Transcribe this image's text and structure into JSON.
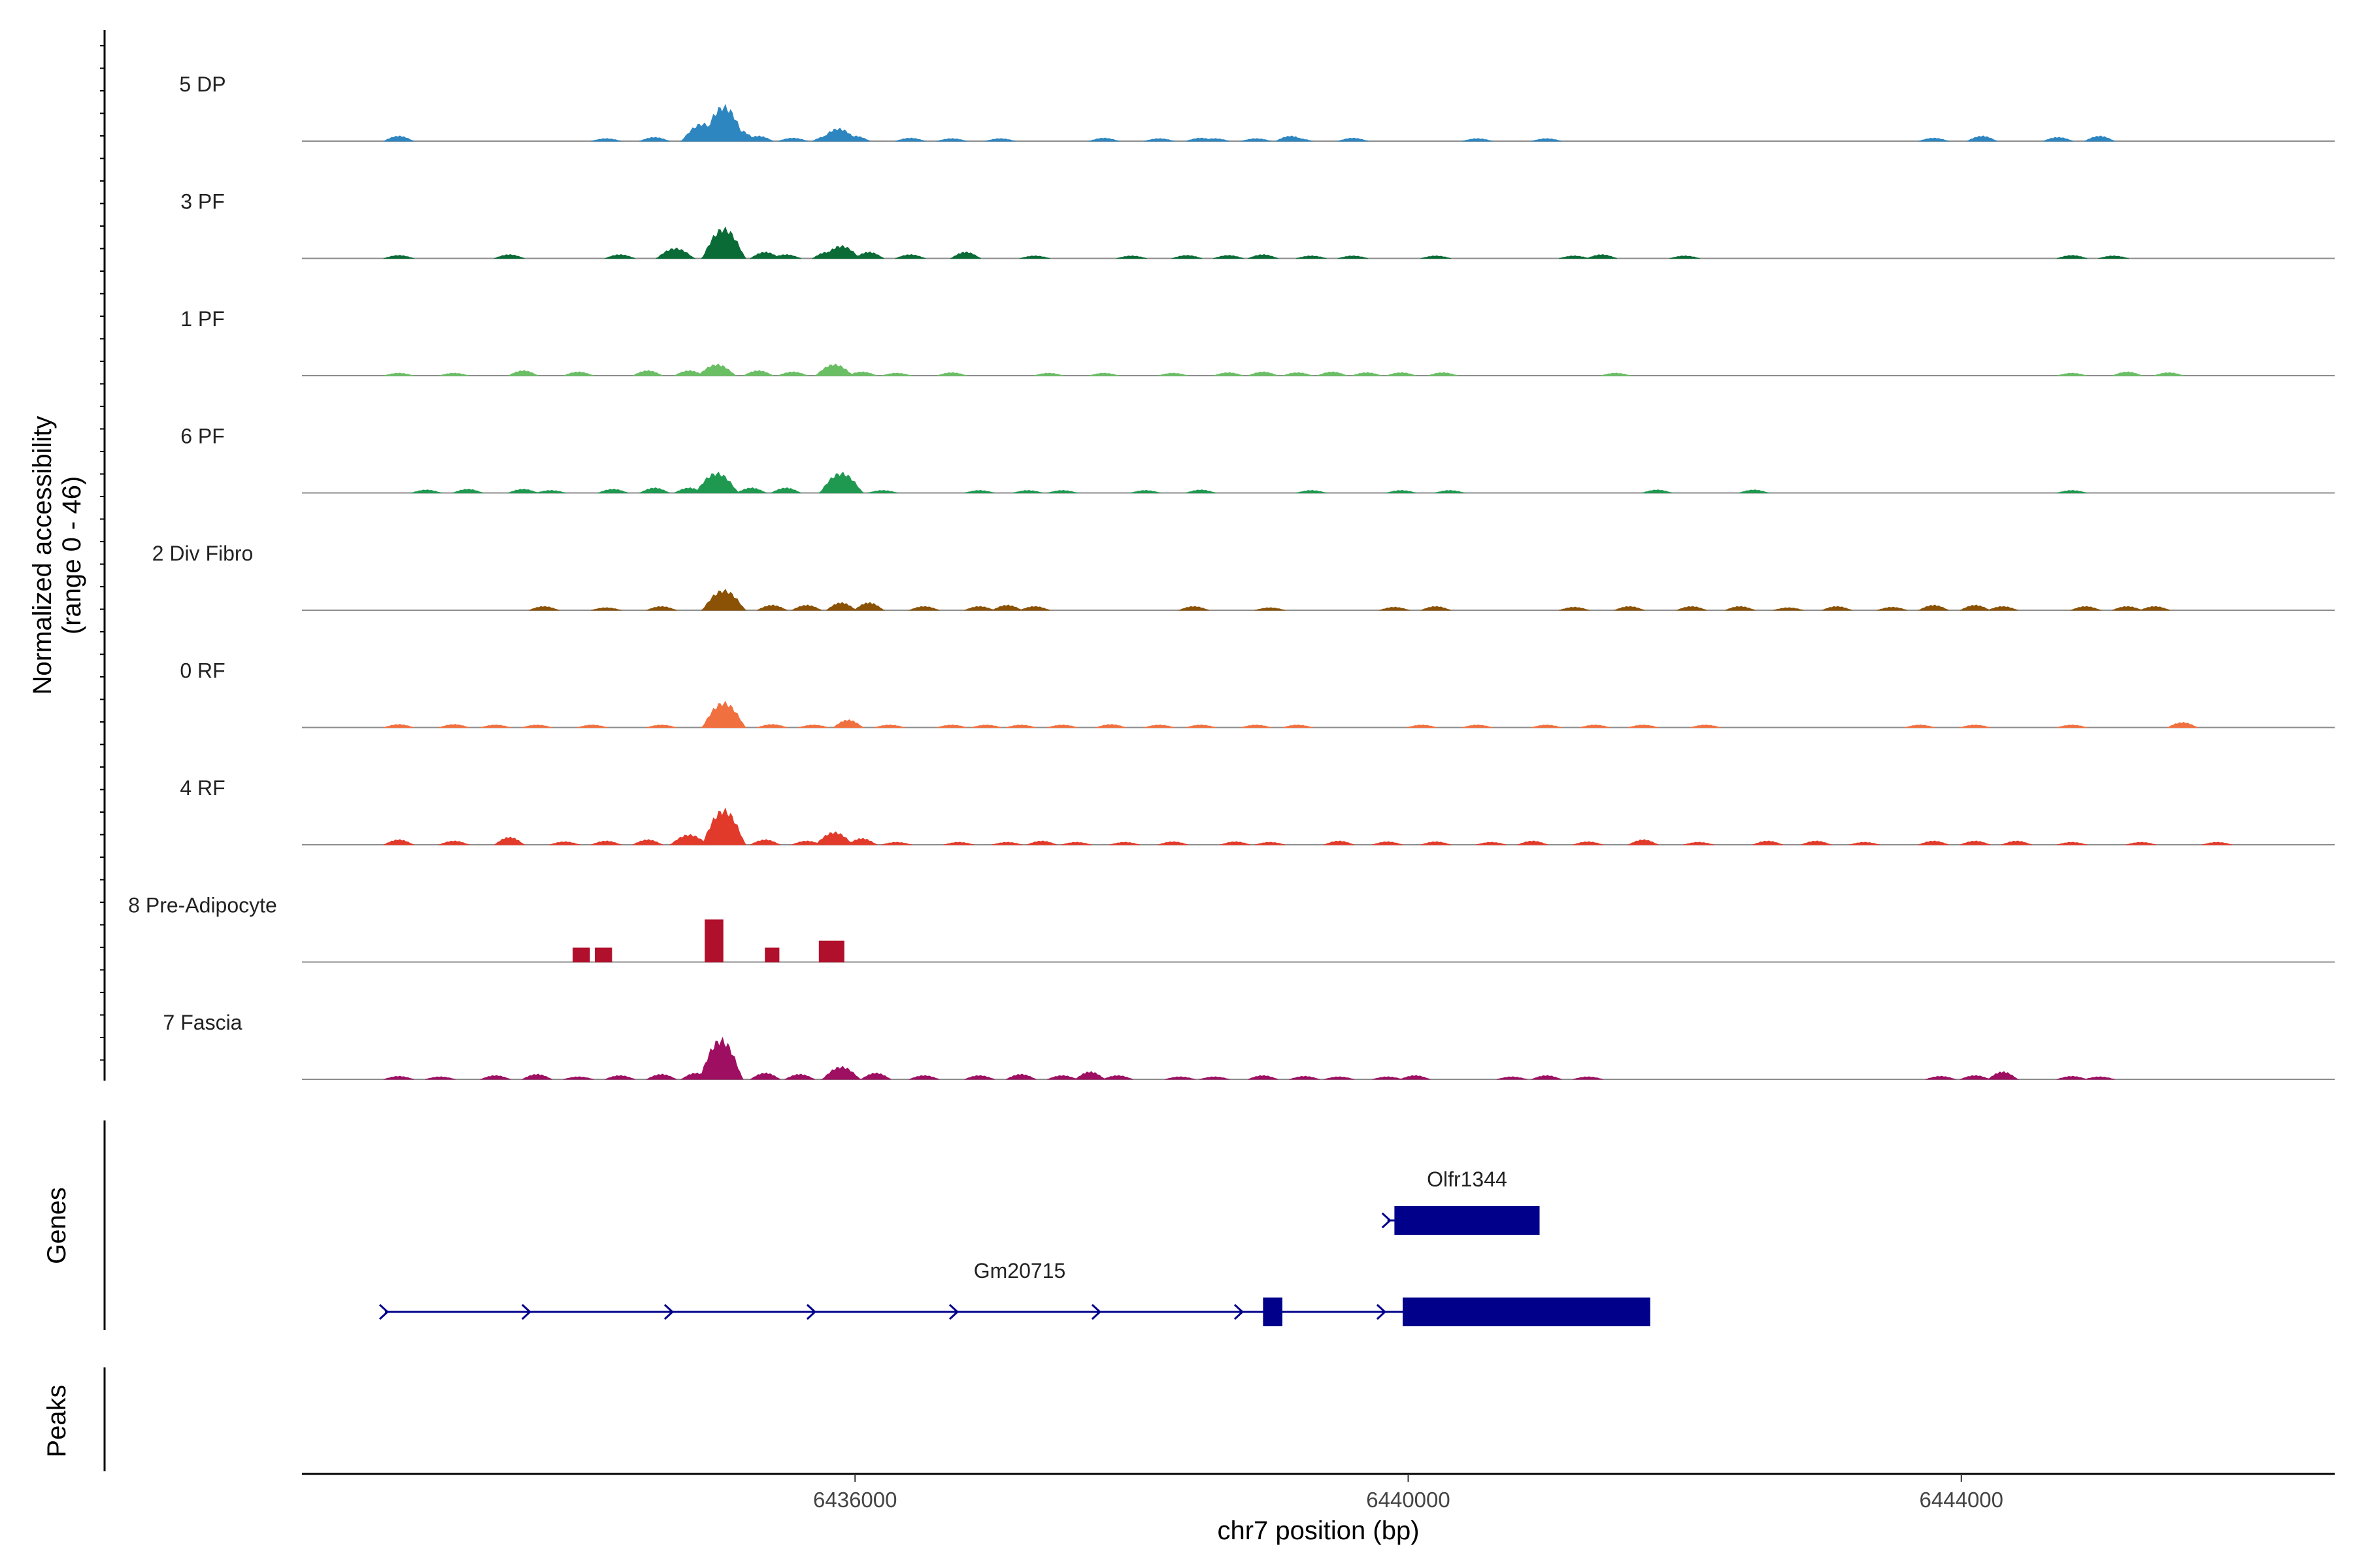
{
  "chart_data": {
    "type": "area",
    "title": "",
    "ylabel_line1": "Normalized accessibility",
    "ylabel_line2": "(range 0 - 46)",
    "xlabel": "chr7 position (bp)",
    "chromosome": "chr7",
    "xlim": [
      6432000,
      6446700
    ],
    "ylim": [
      0,
      46
    ],
    "x_ticks": [
      {
        "value": 6436000,
        "label": "6436000"
      },
      {
        "value": 6440000,
        "label": "6440000"
      },
      {
        "value": 6444000,
        "label": "6444000"
      }
    ],
    "tracks": [
      {
        "name": "5 DP",
        "color": "#2E86C1",
        "peaks": [
          [
            6432700,
            2
          ],
          [
            6434200,
            1
          ],
          [
            6434550,
            1.5
          ],
          [
            6434900,
            7
          ],
          [
            6435050,
            14
          ],
          [
            6435150,
            4.5
          ],
          [
            6435300,
            2
          ],
          [
            6435550,
            1.2
          ],
          [
            6435800,
            2
          ],
          [
            6435880,
            5
          ],
          [
            6436000,
            2
          ],
          [
            6436400,
            1.2
          ],
          [
            6436700,
            1
          ],
          [
            6437050,
            1
          ],
          [
            6437800,
            1.2
          ],
          [
            6438200,
            1
          ],
          [
            6438500,
            1.2
          ],
          [
            6438600,
            1
          ],
          [
            6438900,
            1
          ],
          [
            6439150,
            2
          ],
          [
            6439200,
            1
          ],
          [
            6439600,
            1.2
          ],
          [
            6440500,
            1
          ],
          [
            6441000,
            1
          ],
          [
            6443800,
            1.2
          ],
          [
            6444150,
            2
          ],
          [
            6444700,
            1.5
          ],
          [
            6445000,
            2
          ]
        ]
      },
      {
        "name": "3 PF",
        "color": "#0B6B37",
        "peaks": [
          [
            6432700,
            1.2
          ],
          [
            6433500,
            1.5
          ],
          [
            6434300,
            1.5
          ],
          [
            6434700,
            4
          ],
          [
            6435050,
            12
          ],
          [
            6435350,
            2.5
          ],
          [
            6435500,
            1.5
          ],
          [
            6435800,
            2.5
          ],
          [
            6435900,
            5
          ],
          [
            6436100,
            2.5
          ],
          [
            6436400,
            1.5
          ],
          [
            6436800,
            2.5
          ],
          [
            6437300,
            1
          ],
          [
            6438000,
            1
          ],
          [
            6438400,
            1.2
          ],
          [
            6438700,
            1.2
          ],
          [
            6438950,
            1.5
          ],
          [
            6439300,
            1
          ],
          [
            6439600,
            1
          ],
          [
            6440200,
            1
          ],
          [
            6441200,
            1
          ],
          [
            6441400,
            1.5
          ],
          [
            6442000,
            1
          ],
          [
            6444800,
            1.2
          ],
          [
            6445100,
            1
          ]
        ]
      },
      {
        "name": "1 PF",
        "color": "#6ABE64",
        "peaks": [
          [
            6432700,
            1
          ],
          [
            6433100,
            1
          ],
          [
            6433600,
            2
          ],
          [
            6434000,
            1.5
          ],
          [
            6434500,
            2
          ],
          [
            6434800,
            2
          ],
          [
            6435000,
            4.5
          ],
          [
            6435300,
            2
          ],
          [
            6435550,
            1.5
          ],
          [
            6435850,
            4.5
          ],
          [
            6436050,
            1.5
          ],
          [
            6436300,
            1
          ],
          [
            6436700,
            1.2
          ],
          [
            6437400,
            1
          ],
          [
            6437800,
            1
          ],
          [
            6438300,
            1
          ],
          [
            6438700,
            1.2
          ],
          [
            6438950,
            1.5
          ],
          [
            6439200,
            1.2
          ],
          [
            6439450,
            1.5
          ],
          [
            6439700,
            1.2
          ],
          [
            6439950,
            1.2
          ],
          [
            6440250,
            1.2
          ],
          [
            6441500,
            1
          ],
          [
            6444800,
            1
          ],
          [
            6445200,
            1.5
          ],
          [
            6445500,
            1.2
          ]
        ]
      },
      {
        "name": "6 PF",
        "color": "#1F9950",
        "peaks": [
          [
            6432900,
            1.2
          ],
          [
            6433200,
            1.5
          ],
          [
            6433600,
            1.5
          ],
          [
            6433800,
            1
          ],
          [
            6434250,
            1.5
          ],
          [
            6434550,
            2
          ],
          [
            6434800,
            2
          ],
          [
            6435000,
            8
          ],
          [
            6435250,
            2
          ],
          [
            6435500,
            2
          ],
          [
            6435900,
            8
          ],
          [
            6436200,
            1
          ],
          [
            6436900,
            1
          ],
          [
            6437250,
            1
          ],
          [
            6437500,
            1
          ],
          [
            6438100,
            1
          ],
          [
            6438500,
            1.2
          ],
          [
            6439300,
            1
          ],
          [
            6439950,
            1
          ],
          [
            6440300,
            1
          ],
          [
            6441800,
            1.2
          ],
          [
            6442500,
            1.2
          ],
          [
            6444800,
            1
          ]
        ]
      },
      {
        "name": "2 Div Fibro",
        "color": "#8B5206",
        "peaks": [
          [
            6433750,
            1.5
          ],
          [
            6434200,
            1
          ],
          [
            6434600,
            1.5
          ],
          [
            6435050,
            8
          ],
          [
            6435400,
            2
          ],
          [
            6435650,
            2
          ],
          [
            6435900,
            3
          ],
          [
            6436100,
            3
          ],
          [
            6436500,
            1.5
          ],
          [
            6436900,
            1.5
          ],
          [
            6437100,
            2
          ],
          [
            6437300,
            1.5
          ],
          [
            6438450,
            1.5
          ],
          [
            6439000,
            1
          ],
          [
            6439900,
            1.2
          ],
          [
            6440200,
            1.5
          ],
          [
            6441200,
            1.2
          ],
          [
            6441600,
            1.5
          ],
          [
            6442050,
            1.5
          ],
          [
            6442400,
            1.5
          ],
          [
            6442750,
            1
          ],
          [
            6443100,
            1.5
          ],
          [
            6443500,
            1.2
          ],
          [
            6443800,
            2
          ],
          [
            6444100,
            2
          ],
          [
            6444300,
            1.5
          ],
          [
            6444900,
            1.5
          ],
          [
            6445200,
            1.5
          ],
          [
            6445400,
            1.5
          ]
        ]
      },
      {
        "name": "0 RF",
        "color": "#F07040",
        "peaks": [
          [
            6432700,
            1.2
          ],
          [
            6433100,
            1.2
          ],
          [
            6433400,
            1
          ],
          [
            6433700,
            1
          ],
          [
            6434100,
            1
          ],
          [
            6434600,
            1
          ],
          [
            6435050,
            10
          ],
          [
            6435400,
            1.2
          ],
          [
            6435700,
            1
          ],
          [
            6435950,
            3
          ],
          [
            6436250,
            1
          ],
          [
            6436700,
            1
          ],
          [
            6436950,
            1
          ],
          [
            6437200,
            1
          ],
          [
            6437500,
            1
          ],
          [
            6437850,
            1.2
          ],
          [
            6438200,
            1
          ],
          [
            6438500,
            1
          ],
          [
            6438900,
            1
          ],
          [
            6439200,
            1
          ],
          [
            6440100,
            1
          ],
          [
            6440500,
            1
          ],
          [
            6441000,
            1
          ],
          [
            6441350,
            1
          ],
          [
            6441700,
            1
          ],
          [
            6442150,
            1
          ],
          [
            6443700,
            1
          ],
          [
            6444100,
            1
          ],
          [
            6444800,
            1
          ],
          [
            6445600,
            2
          ]
        ]
      },
      {
        "name": "4 RF",
        "color": "#E23A2A",
        "peaks": [
          [
            6432700,
            2
          ],
          [
            6433100,
            1.5
          ],
          [
            6433500,
            3
          ],
          [
            6433900,
            1.2
          ],
          [
            6434200,
            1.5
          ],
          [
            6434500,
            2
          ],
          [
            6434800,
            4
          ],
          [
            6435050,
            14
          ],
          [
            6435350,
            2
          ],
          [
            6435650,
            1.5
          ],
          [
            6435850,
            5
          ],
          [
            6436050,
            2.5
          ],
          [
            6436300,
            1
          ],
          [
            6436750,
            1
          ],
          [
            6437100,
            1
          ],
          [
            6437350,
            1.5
          ],
          [
            6437600,
            1
          ],
          [
            6437950,
            1
          ],
          [
            6438300,
            1.2
          ],
          [
            6438750,
            1.2
          ],
          [
            6439000,
            1
          ],
          [
            6439500,
            1.5
          ],
          [
            6439850,
            1.2
          ],
          [
            6440200,
            1.2
          ],
          [
            6440600,
            1
          ],
          [
            6440900,
            1.5
          ],
          [
            6441300,
            1.2
          ],
          [
            6441700,
            2
          ],
          [
            6442100,
            1
          ],
          [
            6442600,
            1.5
          ],
          [
            6442950,
            1.5
          ],
          [
            6443300,
            1
          ],
          [
            6443800,
            1.5
          ],
          [
            6444100,
            1.5
          ],
          [
            6444400,
            1.5
          ],
          [
            6444800,
            1
          ],
          [
            6445300,
            1
          ],
          [
            6445850,
            1
          ]
        ]
      },
      {
        "name": "8 Pre-Adipocyte",
        "color": "#B0102C",
        "peaks": [
          [
            6434020,
            6,
            120
          ],
          [
            6434180,
            6,
            120
          ],
          [
            6434980,
            18,
            130
          ],
          [
            6435400,
            6,
            100
          ],
          [
            6435830,
            9,
            180
          ]
        ]
      },
      {
        "name": "7 Fascia",
        "color": "#9E0F62",
        "peaks": [
          [
            6432700,
            1.2
          ],
          [
            6433000,
            1
          ],
          [
            6433400,
            1.5
          ],
          [
            6433700,
            2
          ],
          [
            6434000,
            1
          ],
          [
            6434300,
            1.5
          ],
          [
            6434600,
            2
          ],
          [
            6434850,
            2.5
          ],
          [
            6435030,
            16
          ],
          [
            6435350,
            2.5
          ],
          [
            6435600,
            2
          ],
          [
            6435900,
            5
          ],
          [
            6436150,
            2.5
          ],
          [
            6436500,
            1.5
          ],
          [
            6436900,
            1.5
          ],
          [
            6437200,
            2
          ],
          [
            6437500,
            1.5
          ],
          [
            6437700,
            3
          ],
          [
            6437900,
            1.5
          ],
          [
            6438350,
            1
          ],
          [
            6438600,
            1
          ],
          [
            6438950,
            1.5
          ],
          [
            6439250,
            1.2
          ],
          [
            6439500,
            1
          ],
          [
            6439850,
            1
          ],
          [
            6440050,
            1.5
          ],
          [
            6440750,
            1
          ],
          [
            6441000,
            1.5
          ],
          [
            6441300,
            1
          ],
          [
            6443850,
            1.2
          ],
          [
            6444100,
            1.5
          ],
          [
            6444300,
            3
          ],
          [
            6444800,
            1.2
          ],
          [
            6445000,
            1
          ]
        ]
      }
    ],
    "genes": [
      {
        "name": "Olfr1344",
        "start": 6439850,
        "end": 6440950,
        "exons": [
          [
            6439900,
            6440950
          ]
        ]
      },
      {
        "name": "Gm20715",
        "start": 6432600,
        "end": 6441750,
        "exons": [
          [
            6438950,
            6439090
          ],
          [
            6439960,
            6441750
          ]
        ]
      }
    ],
    "gene_track_label": "Genes",
    "peaks_track_label": "Peaks"
  }
}
